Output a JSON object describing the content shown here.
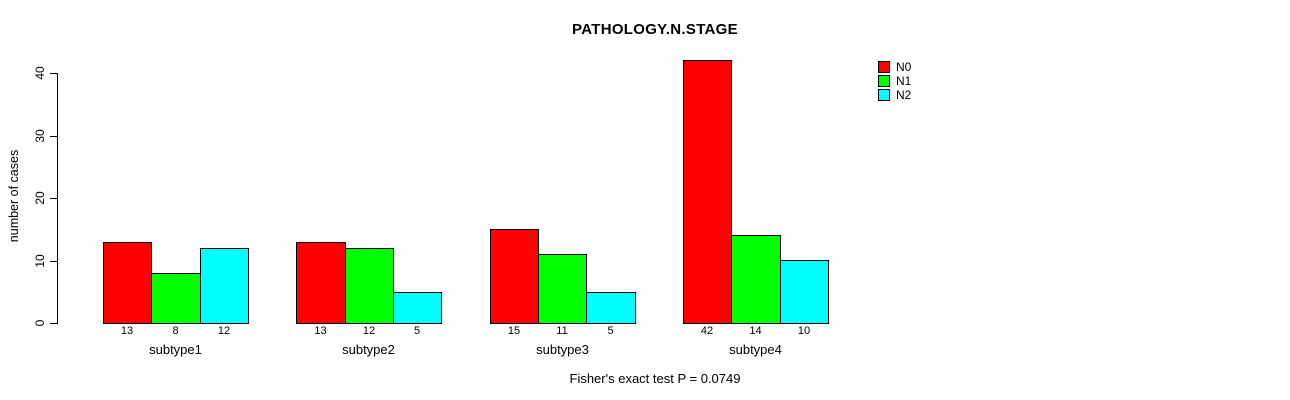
{
  "chart_data": {
    "type": "bar",
    "title": "PATHOLOGY.N.STAGE",
    "ylabel": "number of cases",
    "xlabel": "",
    "categories": [
      "subtype1",
      "subtype2",
      "subtype3",
      "subtype4"
    ],
    "series": [
      {
        "name": "N0",
        "color": "#ff0000",
        "values": [
          13,
          13,
          15,
          42
        ]
      },
      {
        "name": "N1",
        "color": "#00ff00",
        "values": [
          8,
          12,
          11,
          14
        ]
      },
      {
        "name": "N2",
        "color": "#00ffff",
        "values": [
          12,
          5,
          5,
          10
        ]
      }
    ],
    "bar_value_labels": [
      [
        "13",
        "8",
        "12"
      ],
      [
        "13",
        "12",
        "5"
      ],
      [
        "15",
        "11",
        "5"
      ],
      [
        "42",
        "14",
        "10"
      ]
    ],
    "yticks": [
      "0",
      "10",
      "20",
      "30",
      "40"
    ],
    "ylim": [
      0,
      42
    ],
    "grid": false,
    "legend_position": "top-right-inset",
    "annotation": "Fisher's exact test P = 0.0749",
    "axis_color": "#000000",
    "background_color": "#ffffff"
  }
}
